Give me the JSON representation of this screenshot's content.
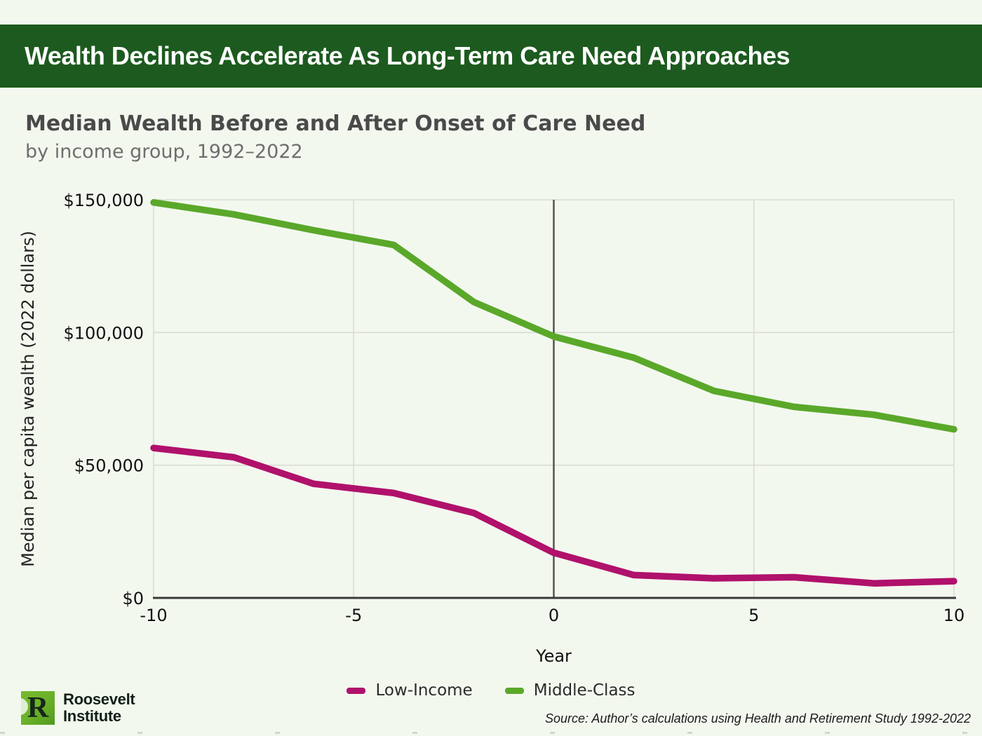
{
  "banner": {
    "title": "Wealth Declines Accelerate As Long-Term Care Need Approaches",
    "bg_color": "#1d5a1f"
  },
  "chart": {
    "title": "Median Wealth Before and After Onset of Care Need",
    "subtitle": "by income group, 1992–2022"
  },
  "chart_data": {
    "type": "line",
    "x": [
      -10,
      -8,
      -6,
      -4,
      -2,
      0,
      2,
      4,
      6,
      8,
      10
    ],
    "series": [
      {
        "name": "Low-Income",
        "color": "#b0116b",
        "values": [
          56500,
          53000,
          43000,
          39500,
          32000,
          17000,
          8600,
          7400,
          7800,
          5500,
          6300
        ]
      },
      {
        "name": "Middle-Class",
        "color": "#5aa82a",
        "values": [
          149000,
          144500,
          138500,
          133000,
          111500,
          98500,
          90500,
          78000,
          72000,
          69000,
          63500
        ]
      }
    ],
    "xlabel": "Year",
    "ylabel": "Median per capita wealth (2022 dollars)",
    "xlim": [
      -10,
      10
    ],
    "ylim": [
      0,
      150000
    ],
    "xticks": {
      "values": [
        -10,
        -5,
        0,
        5,
        10
      ],
      "labels": [
        "-10",
        "-5",
        "0",
        "5",
        "10"
      ]
    },
    "yticks": {
      "values": [
        0,
        50000,
        100000,
        150000
      ],
      "labels": [
        "$0",
        "$50,000",
        "$100,000",
        "$150,000"
      ]
    },
    "grid": true,
    "zero_year_line": 0,
    "legend_position": "bottom"
  },
  "legend": {
    "items": [
      {
        "label": "Low-Income",
        "color": "#b0116b"
      },
      {
        "label": "Middle-Class",
        "color": "#5aa82a"
      }
    ]
  },
  "footer": {
    "source": "Source: Author’s calculations using Health and Retirement Study 1992-2022",
    "logo_line1": "Roosevelt",
    "logo_line2": "Institute",
    "logo_letter": "R"
  },
  "colors": {
    "background": "#f3f8ef",
    "grid": "#d7dcd4",
    "axis": "#3a3a3a",
    "zero_line": "#4d4d4d",
    "tick_text": "#111111"
  }
}
